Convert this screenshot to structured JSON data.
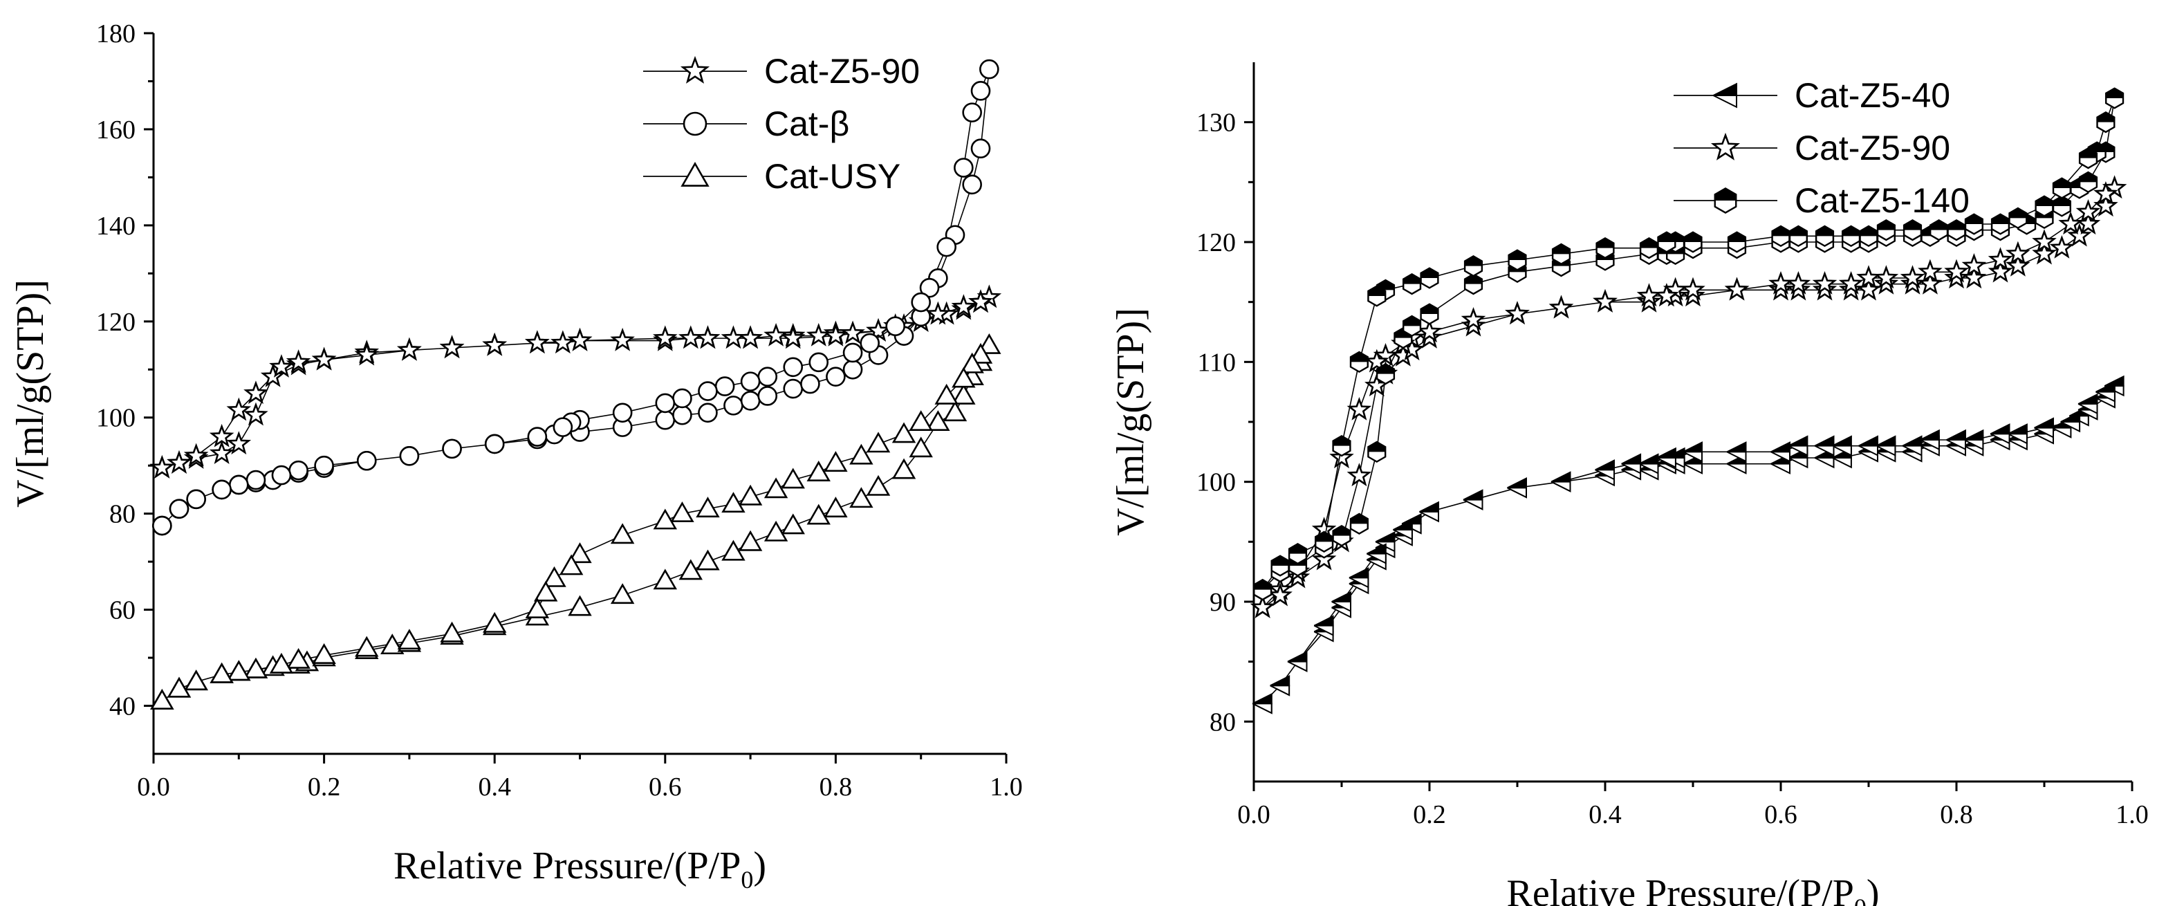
{
  "chart_data": [
    {
      "type": "line",
      "title": "",
      "xlabel": "Relative Pressure/(P/P",
      "xlabel_sub": "0",
      "xlabel_close": ")",
      "ylabel": "V/[ml/g(STP)]",
      "xlim": [
        0.0,
        1.0
      ],
      "ylim": [
        30,
        180
      ],
      "xticks": [
        "0.0",
        "0.2",
        "0.4",
        "0.6",
        "0.8",
        "1.0"
      ],
      "yticks": [
        "40",
        "60",
        "80",
        "100",
        "120",
        "140",
        "160",
        "180"
      ],
      "legend_position": "top-right",
      "series": [
        {
          "name": "Cat-Z5-90",
          "marker": "star",
          "x": [
            0.01,
            0.03,
            0.05,
            0.08,
            0.1,
            0.12,
            0.14,
            0.17,
            0.2,
            0.25,
            0.3,
            0.35,
            0.4,
            0.45,
            0.48,
            0.5,
            0.55,
            0.6,
            0.63,
            0.65,
            0.68,
            0.7,
            0.73,
            0.75,
            0.78,
            0.8,
            0.85,
            0.88,
            0.9,
            0.93,
            0.95,
            0.97,
            0.98,
            0.97,
            0.95,
            0.92,
            0.9,
            0.87,
            0.85,
            0.82,
            0.8,
            0.75,
            0.7,
            0.65,
            0.6,
            0.5,
            0.45,
            0.4,
            0.35,
            0.3,
            0.25,
            0.2,
            0.17,
            0.15,
            0.12,
            0.1,
            0.08,
            0.05,
            0.03,
            0.01
          ],
          "y": [
            89.5,
            90.5,
            91.5,
            92.5,
            94.5,
            100.5,
            108.5,
            111,
            112,
            113.5,
            114,
            114.5,
            115,
            115.5,
            115.5,
            116,
            116,
            116,
            116.5,
            116.5,
            116.5,
            116.5,
            117,
            117,
            117,
            117.5,
            118,
            119,
            120,
            121.5,
            122.5,
            124,
            125,
            124,
            123,
            121.5,
            120,
            119,
            118,
            117.5,
            117,
            116.5,
            116.5,
            116.5,
            116.5,
            116,
            115.5,
            115,
            114.5,
            114,
            113,
            112,
            111.5,
            110.5,
            105,
            101.5,
            96,
            92,
            90.5,
            89.5
          ]
        },
        {
          "name": "Cat-β",
          "marker": "circle",
          "x": [
            0.01,
            0.03,
            0.05,
            0.08,
            0.1,
            0.12,
            0.14,
            0.17,
            0.2,
            0.25,
            0.3,
            0.35,
            0.4,
            0.45,
            0.47,
            0.5,
            0.55,
            0.6,
            0.62,
            0.65,
            0.68,
            0.7,
            0.72,
            0.75,
            0.77,
            0.8,
            0.82,
            0.85,
            0.88,
            0.9,
            0.92,
            0.94,
            0.96,
            0.97,
            0.98,
            0.97,
            0.96,
            0.95,
            0.93,
            0.91,
            0.9,
            0.87,
            0.84,
            0.82,
            0.78,
            0.75,
            0.72,
            0.7,
            0.67,
            0.65,
            0.62,
            0.6,
            0.55,
            0.5,
            0.49,
            0.48,
            0.45,
            0.4,
            0.35,
            0.3,
            0.25,
            0.2,
            0.17,
            0.15,
            0.12,
            0.1,
            0.08,
            0.05,
            0.03,
            0.01
          ],
          "y": [
            77.5,
            81,
            83,
            85,
            86,
            86.5,
            87,
            88.5,
            89.5,
            91,
            92,
            93.5,
            94.5,
            95.5,
            96.5,
            97,
            98,
            99.5,
            100.5,
            101,
            102.5,
            103.5,
            104.5,
            106,
            107,
            108.5,
            110,
            113,
            117,
            121,
            129,
            138,
            148.5,
            156,
            172.5,
            168,
            163.5,
            152,
            135.5,
            127,
            124,
            119,
            115.5,
            113.5,
            111.5,
            110.5,
            108.5,
            107.5,
            106.5,
            105.5,
            104,
            103,
            101,
            99.5,
            99,
            98,
            96,
            94.5,
            93.5,
            92,
            91,
            90,
            89,
            88,
            87,
            86,
            85,
            83,
            81,
            77.5
          ]
        },
        {
          "name": "Cat-USY",
          "marker": "triangle",
          "x": [
            0.01,
            0.03,
            0.05,
            0.08,
            0.1,
            0.12,
            0.14,
            0.17,
            0.18,
            0.2,
            0.25,
            0.28,
            0.3,
            0.35,
            0.4,
            0.45,
            0.5,
            0.55,
            0.6,
            0.63,
            0.65,
            0.68,
            0.7,
            0.73,
            0.75,
            0.78,
            0.8,
            0.83,
            0.85,
            0.88,
            0.9,
            0.92,
            0.94,
            0.95,
            0.96,
            0.97,
            0.98,
            0.97,
            0.96,
            0.95,
            0.93,
            0.9,
            0.88,
            0.85,
            0.83,
            0.8,
            0.78,
            0.75,
            0.73,
            0.7,
            0.68,
            0.65,
            0.62,
            0.6,
            0.55,
            0.5,
            0.49,
            0.47,
            0.46,
            0.45,
            0.4,
            0.35,
            0.3,
            0.25,
            0.2,
            0.17,
            0.15,
            0.12,
            0.1,
            0.08,
            0.05,
            0.03,
            0.01
          ],
          "y": [
            41,
            43.5,
            45,
            46.5,
            47,
            47.5,
            48,
            48.5,
            49,
            50,
            51.5,
            52.5,
            53,
            54.5,
            56.5,
            58.5,
            60.5,
            63,
            66,
            68,
            70,
            72,
            74,
            76,
            77.5,
            79.5,
            81,
            83,
            85.5,
            89,
            93.5,
            99,
            101,
            104.5,
            108.5,
            111.5,
            115,
            113,
            111,
            108,
            104.5,
            99,
            96.5,
            94.5,
            92,
            90.5,
            88.5,
            87,
            85,
            83.5,
            82,
            81,
            80,
            78.5,
            75.5,
            71.5,
            69,
            66.5,
            63.5,
            60,
            57,
            55,
            53.5,
            52,
            50.5,
            49.5,
            48.5,
            47.5,
            47,
            46.5,
            45,
            43.5,
            41
          ]
        }
      ]
    },
    {
      "type": "line",
      "title": "",
      "xlabel": "Relative Pressure/(P/P",
      "xlabel_sub": "0",
      "xlabel_close": ")",
      "ylabel": "V/[ml/g(STP)]",
      "xlim": [
        0.0,
        1.0
      ],
      "ylim": [
        75,
        135
      ],
      "xticks": [
        "0.0",
        "0.2",
        "0.4",
        "0.6",
        "0.8",
        "1.0"
      ],
      "yticks": [
        "80",
        "90",
        "100",
        "110",
        "120",
        "130"
      ],
      "legend_position": "top-right",
      "series": [
        {
          "name": "Cat-Z5-40",
          "marker": "triangle-left",
          "x": [
            0.01,
            0.03,
            0.05,
            0.08,
            0.1,
            0.12,
            0.14,
            0.15,
            0.17,
            0.18,
            0.2,
            0.25,
            0.3,
            0.35,
            0.4,
            0.43,
            0.45,
            0.47,
            0.48,
            0.5,
            0.55,
            0.6,
            0.62,
            0.65,
            0.67,
            0.7,
            0.72,
            0.75,
            0.77,
            0.8,
            0.82,
            0.85,
            0.87,
            0.9,
            0.92,
            0.94,
            0.95,
            0.97,
            0.98,
            0.97,
            0.95,
            0.93,
            0.9,
            0.87,
            0.85,
            0.82,
            0.8,
            0.77,
            0.75,
            0.72,
            0.7,
            0.67,
            0.65,
            0.62,
            0.6,
            0.55,
            0.5,
            0.48,
            0.47,
            0.45,
            0.43,
            0.4,
            0.35,
            0.3,
            0.25,
            0.2,
            0.18,
            0.17,
            0.15,
            0.14,
            0.12,
            0.1,
            0.08,
            0.05,
            0.03,
            0.01
          ],
          "y": [
            81.5,
            83,
            85,
            87.5,
            89.5,
            91.5,
            93.5,
            94.5,
            95.5,
            96.5,
            97.5,
            98.5,
            99.5,
            100,
            100.5,
            101,
            101,
            101.5,
            101.5,
            101.5,
            101.5,
            101.5,
            102,
            102,
            102,
            102.5,
            102.5,
            102.5,
            103,
            103,
            103,
            103.5,
            103.5,
            104,
            104.5,
            105.5,
            106,
            107,
            108,
            107.5,
            106.5,
            105,
            104.5,
            104,
            104,
            103.5,
            103.5,
            103.5,
            103,
            103,
            103,
            103,
            103,
            103,
            102.5,
            102.5,
            102.5,
            102,
            102,
            101.5,
            101.5,
            101,
            100,
            99.5,
            98.5,
            97.5,
            96.5,
            96,
            95,
            94,
            92,
            90,
            88,
            85,
            83,
            81.5
          ]
        },
        {
          "name": "Cat-Z5-90",
          "marker": "star",
          "x": [
            0.01,
            0.03,
            0.05,
            0.08,
            0.1,
            0.12,
            0.14,
            0.15,
            0.17,
            0.18,
            0.2,
            0.25,
            0.3,
            0.35,
            0.4,
            0.45,
            0.47,
            0.48,
            0.5,
            0.55,
            0.6,
            0.62,
            0.65,
            0.68,
            0.7,
            0.72,
            0.75,
            0.77,
            0.8,
            0.82,
            0.85,
            0.87,
            0.9,
            0.92,
            0.94,
            0.95,
            0.97,
            0.98,
            0.97,
            0.95,
            0.93,
            0.9,
            0.87,
            0.85,
            0.82,
            0.8,
            0.77,
            0.75,
            0.72,
            0.7,
            0.68,
            0.65,
            0.62,
            0.6,
            0.55,
            0.5,
            0.48,
            0.47,
            0.45,
            0.4,
            0.35,
            0.3,
            0.25,
            0.2,
            0.18,
            0.17,
            0.15,
            0.14,
            0.12,
            0.1,
            0.08,
            0.05,
            0.03,
            0.01
          ],
          "y": [
            89.5,
            91,
            92,
            93.5,
            95,
            100.5,
            108,
            109,
            110.5,
            111,
            112,
            113,
            114,
            114.5,
            115,
            115,
            115.5,
            115.5,
            115.5,
            116,
            116,
            116,
            116,
            116,
            116,
            116.5,
            116.5,
            116.5,
            117,
            117,
            117.5,
            118,
            119,
            119.5,
            120.5,
            121.5,
            123,
            124.5,
            124,
            122.5,
            121.5,
            120,
            119,
            118.5,
            118,
            117.5,
            117.5,
            117,
            117,
            117,
            116.5,
            116.5,
            116.5,
            116.5,
            116,
            116,
            116,
            115.5,
            115.5,
            115,
            114.5,
            114,
            113.5,
            112.5,
            112,
            111.5,
            110.5,
            110,
            106,
            102,
            96,
            92.5,
            90.5,
            89.5
          ]
        },
        {
          "name": "Cat-Z5-140",
          "marker": "hexagon-half",
          "x": [
            0.01,
            0.03,
            0.05,
            0.08,
            0.1,
            0.12,
            0.14,
            0.15,
            0.17,
            0.18,
            0.2,
            0.25,
            0.3,
            0.35,
            0.4,
            0.45,
            0.47,
            0.48,
            0.5,
            0.55,
            0.6,
            0.62,
            0.65,
            0.68,
            0.7,
            0.72,
            0.75,
            0.77,
            0.8,
            0.82,
            0.85,
            0.88,
            0.9,
            0.92,
            0.94,
            0.95,
            0.97,
            0.98,
            0.97,
            0.96,
            0.95,
            0.92,
            0.9,
            0.87,
            0.85,
            0.82,
            0.8,
            0.78,
            0.75,
            0.72,
            0.7,
            0.68,
            0.65,
            0.62,
            0.6,
            0.55,
            0.5,
            0.48,
            0.47,
            0.45,
            0.4,
            0.35,
            0.3,
            0.25,
            0.2,
            0.18,
            0.15,
            0.14,
            0.12,
            0.1,
            0.08,
            0.05,
            0.03,
            0.01
          ],
          "y": [
            91,
            92.5,
            93,
            94.5,
            95.5,
            96.5,
            102.5,
            109,
            112,
            113,
            114,
            116.5,
            117.5,
            118,
            118.5,
            119,
            119,
            119,
            119.5,
            119.5,
            120,
            120,
            120,
            120,
            120,
            120.5,
            120.5,
            120.5,
            120.5,
            121,
            121,
            121.5,
            122,
            123,
            124.5,
            125,
            127.5,
            132,
            130,
            127.5,
            127,
            124.5,
            123,
            122,
            121.5,
            121.5,
            121,
            121,
            121,
            121,
            120.5,
            120.5,
            120.5,
            120.5,
            120.5,
            120,
            120,
            120,
            120,
            119.5,
            119.5,
            119,
            118.5,
            118,
            117,
            116.5,
            116,
            115.5,
            110,
            103,
            95,
            94,
            93,
            91
          ]
        }
      ]
    }
  ]
}
